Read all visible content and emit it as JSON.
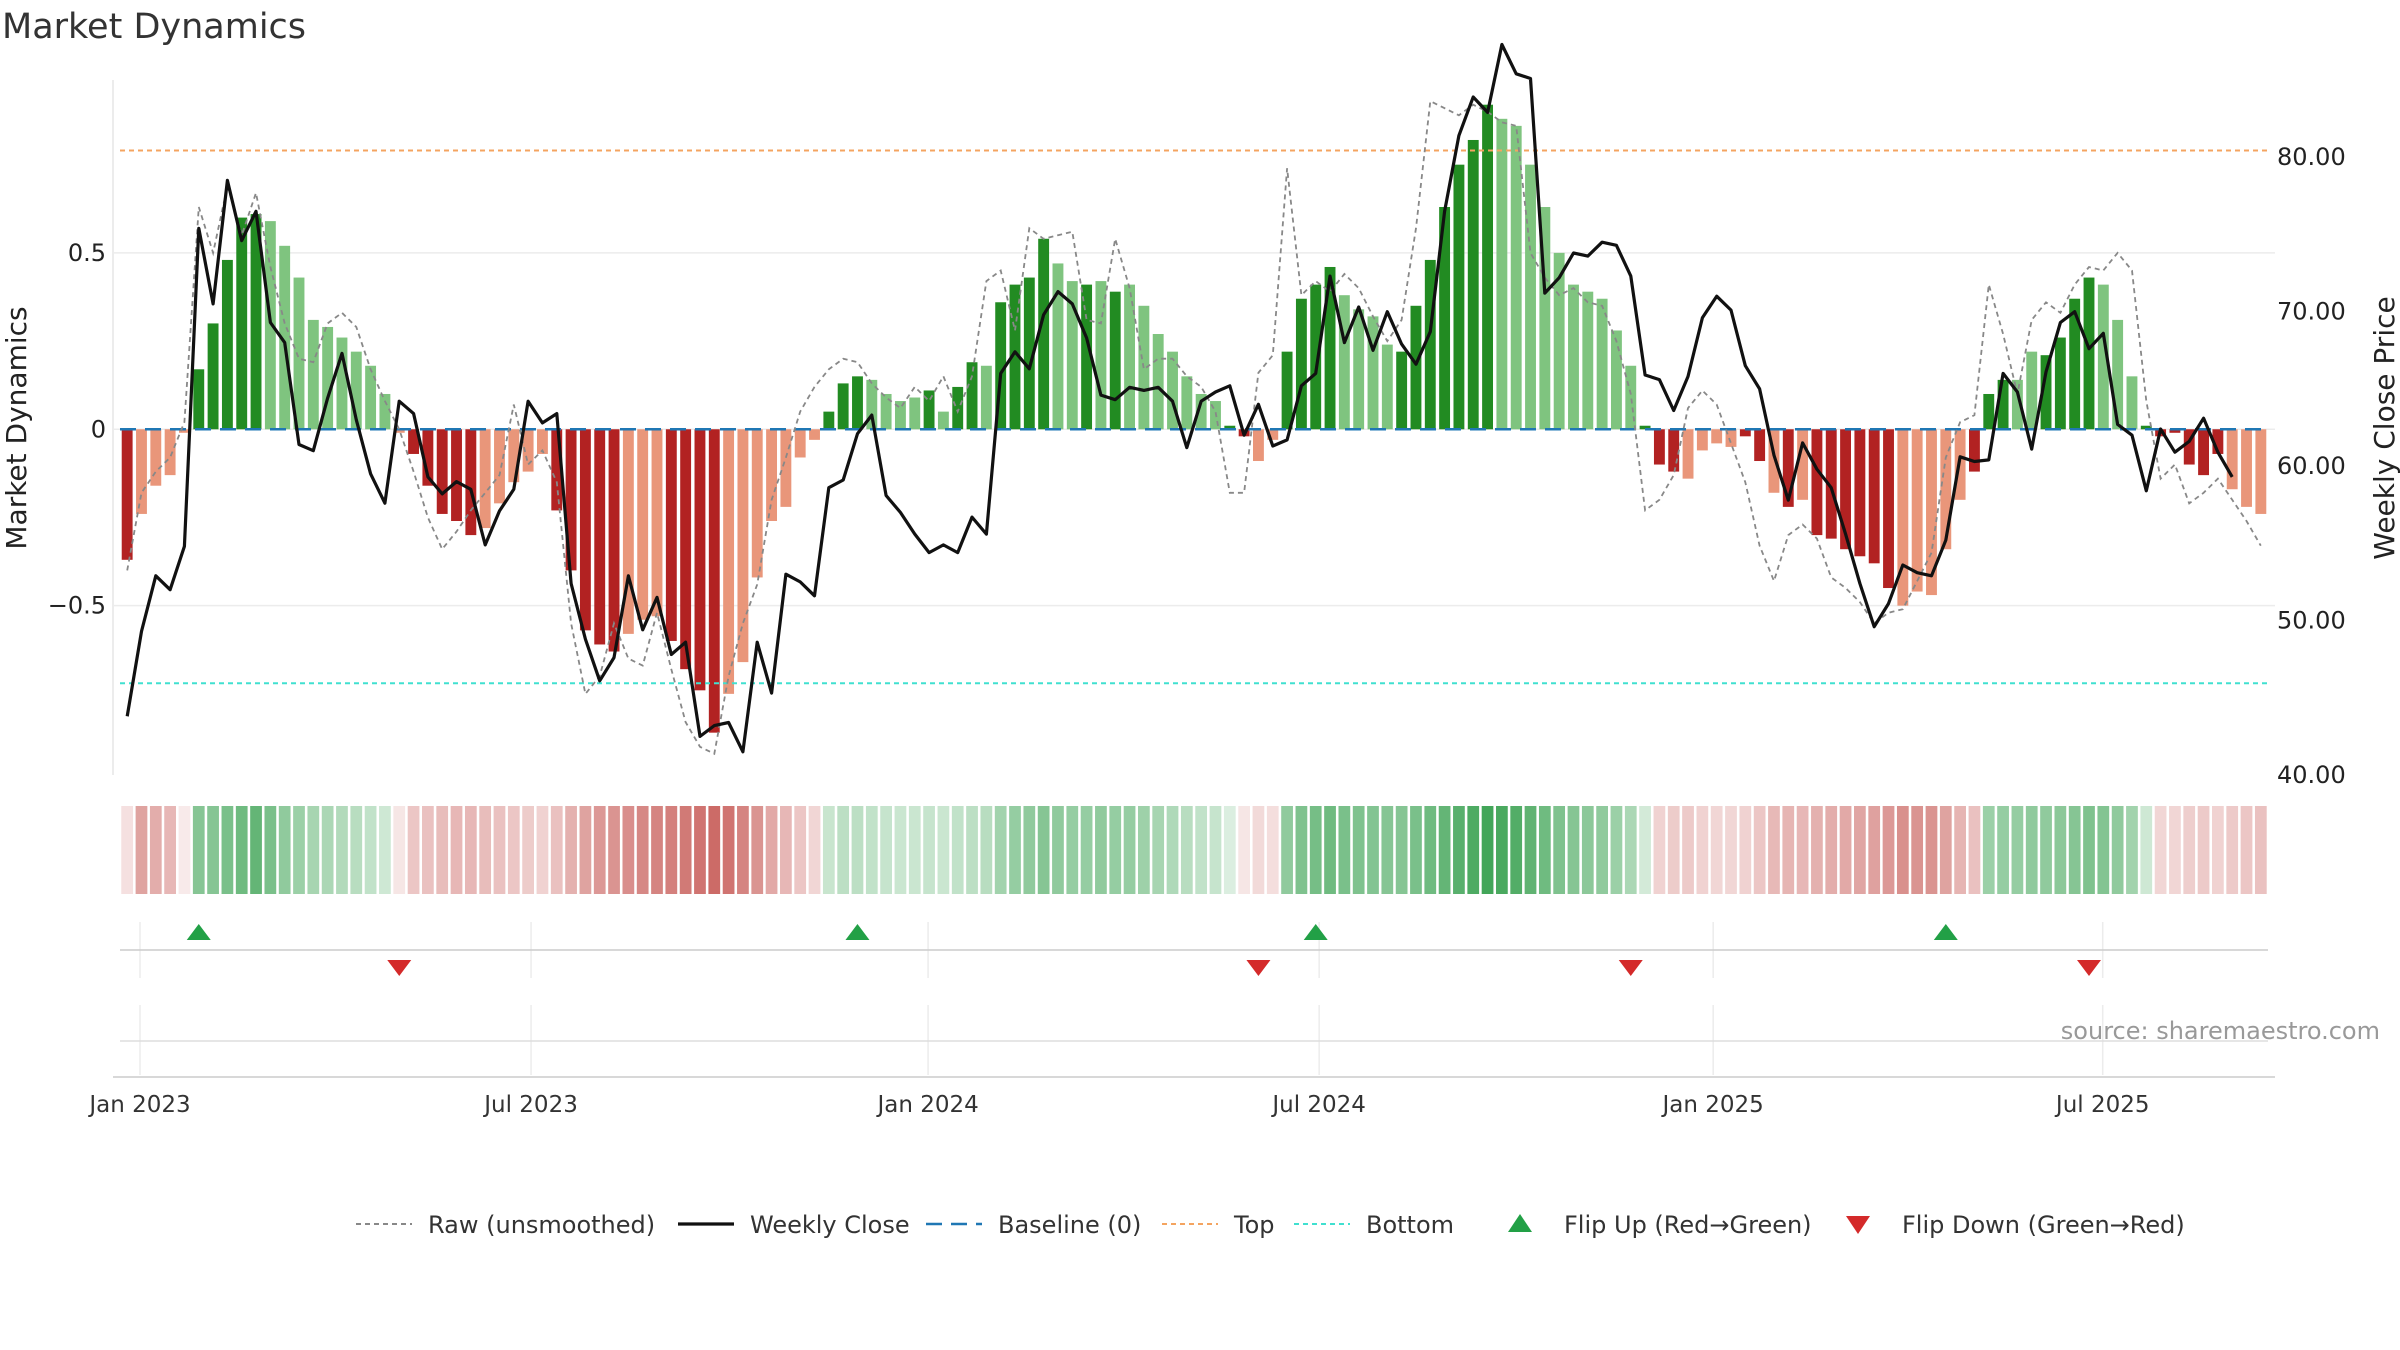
{
  "title": "Market Dynamics",
  "source": "source: sharemaestro.com",
  "colors": {
    "strong_green": "#228B22",
    "light_green": "#7fc47f",
    "strong_red": "#b22222",
    "light_red": "#e9967a",
    "close": "#111111",
    "raw": "#888888",
    "baseline": "#1f77b4",
    "top": "#f4a460",
    "bottom": "#40e0d0",
    "flip_up": "#22a046",
    "flip_down": "#d42a2a"
  },
  "chart_data": {
    "type": "bar",
    "title": "Market Dynamics",
    "ylabel_left": "Market Dynamics",
    "ylabel_right": "Weekly Close Price",
    "ylim_left": [
      -0.98,
      0.99
    ],
    "ylim_right": [
      40,
      85
    ],
    "left_ticks": [
      {
        "v": 0.5,
        "label": "0.5"
      },
      {
        "v": 0,
        "label": "0"
      },
      {
        "v": -0.5,
        "label": "−0.5"
      }
    ],
    "right_ticks": [
      {
        "v": 80,
        "label": "80.00"
      },
      {
        "v": 70,
        "label": "70.00"
      },
      {
        "v": 60,
        "label": "60.00"
      },
      {
        "v": 50,
        "label": "50.00"
      },
      {
        "v": 40,
        "label": "40.00"
      }
    ],
    "x_ticks": [
      {
        "label": "Jan 2023",
        "week": 0
      },
      {
        "label": "Jul 2023",
        "week": 26
      },
      {
        "label": "Jan 2024",
        "week": 52.4
      },
      {
        "label": "Jul 2024",
        "week": 78.4
      },
      {
        "label": "Jan 2025",
        "week": 104.6
      },
      {
        "label": "Jul 2025",
        "week": 130.5
      }
    ],
    "top_line": 0.79,
    "bottom_line": -0.72,
    "baseline": 0,
    "dynamics": [
      -0.37,
      -0.24,
      -0.16,
      -0.13,
      -0.01,
      0.17,
      0.3,
      0.48,
      0.6,
      0.61,
      0.59,
      0.52,
      0.43,
      0.31,
      0.29,
      0.26,
      0.22,
      0.18,
      0.1,
      -0.01,
      -0.07,
      -0.16,
      -0.24,
      -0.26,
      -0.3,
      -0.28,
      -0.21,
      -0.15,
      -0.12,
      -0.07,
      -0.23,
      -0.4,
      -0.57,
      -0.61,
      -0.63,
      -0.58,
      -0.54,
      -0.53,
      -0.6,
      -0.68,
      -0.74,
      -0.86,
      -0.75,
      -0.66,
      -0.42,
      -0.26,
      -0.22,
      -0.08,
      -0.03,
      0.05,
      0.13,
      0.15,
      0.14,
      0.1,
      0.08,
      0.09,
      0.11,
      0.05,
      0.12,
      0.19,
      0.18,
      0.36,
      0.41,
      0.43,
      0.54,
      0.47,
      0.42,
      0.41,
      0.42,
      0.39,
      0.41,
      0.35,
      0.27,
      0.22,
      0.15,
      0.1,
      0.08,
      0.01,
      -0.02,
      -0.09,
      -0.03,
      0.22,
      0.37,
      0.41,
      0.46,
      0.38,
      0.34,
      0.32,
      0.24,
      0.22,
      0.35,
      0.48,
      0.63,
      0.75,
      0.82,
      0.92,
      0.88,
      0.86,
      0.75,
      0.63,
      0.5,
      0.41,
      0.39,
      0.37,
      0.28,
      0.18,
      0.01,
      -0.1,
      -0.12,
      -0.14,
      -0.06,
      -0.04,
      -0.05,
      -0.02,
      -0.09,
      -0.18,
      -0.22,
      -0.2,
      -0.3,
      -0.31,
      -0.34,
      -0.36,
      -0.38,
      -0.45,
      -0.5,
      -0.46,
      -0.47,
      -0.34,
      -0.2,
      -0.12,
      0.1,
      0.14,
      0.14,
      0.22,
      0.21,
      0.26,
      0.37,
      0.43,
      0.41,
      0.31,
      0.15,
      0.01,
      -0.02,
      -0.01,
      -0.1,
      -0.13,
      -0.07,
      -0.17,
      -0.22,
      -0.24
    ],
    "bar_shades": [
      "dark",
      "light",
      "light",
      "light",
      "light",
      "dark",
      "dark",
      "dark",
      "dark",
      "dark",
      "light",
      "light",
      "light",
      "light",
      "light",
      "light",
      "light",
      "light",
      "light",
      "light",
      "dark",
      "dark",
      "dark",
      "dark",
      "dark",
      "light",
      "light",
      "light",
      "light",
      "light",
      "dark",
      "dark",
      "dark",
      "dark",
      "dark",
      "light",
      "light",
      "light",
      "dark",
      "dark",
      "dark",
      "dark",
      "light",
      "light",
      "light",
      "light",
      "light",
      "light",
      "light",
      "dark",
      "dark",
      "dark",
      "light",
      "light",
      "light",
      "light",
      "dark",
      "light",
      "dark",
      "dark",
      "light",
      "dark",
      "dark",
      "dark",
      "dark",
      "light",
      "light",
      "dark",
      "light",
      "dark",
      "light",
      "light",
      "light",
      "light",
      "light",
      "light",
      "light",
      "dark",
      "dark",
      "light",
      "light",
      "dark",
      "dark",
      "dark",
      "dark",
      "light",
      "light",
      "light",
      "light",
      "dark",
      "dark",
      "dark",
      "dark",
      "dark",
      "dark",
      "dark",
      "light",
      "light",
      "light",
      "light",
      "light",
      "light",
      "light",
      "light",
      "light",
      "light",
      "dark",
      "dark",
      "dark",
      "light",
      "light",
      "light",
      "light",
      "dark",
      "dark",
      "light",
      "dark",
      "light",
      "dark",
      "dark",
      "dark",
      "dark",
      "dark",
      "dark",
      "light",
      "light",
      "light",
      "light",
      "light",
      "dark",
      "dark",
      "dark",
      "light",
      "light",
      "dark",
      "dark",
      "dark",
      "dark",
      "light",
      "light",
      "light",
      "dark",
      "dark",
      "dark",
      "dark",
      "dark",
      "dark"
    ],
    "raw": [
      -0.4,
      -0.18,
      -0.12,
      -0.08,
      0.02,
      0.63,
      0.5,
      0.69,
      0.55,
      0.67,
      0.46,
      0.3,
      0.2,
      0.19,
      0.3,
      0.33,
      0.29,
      0.17,
      0.08,
      0.0,
      -0.12,
      -0.25,
      -0.34,
      -0.29,
      -0.23,
      -0.18,
      -0.13,
      0.07,
      -0.1,
      -0.06,
      -0.15,
      -0.55,
      -0.75,
      -0.7,
      -0.55,
      -0.65,
      -0.67,
      -0.52,
      -0.68,
      -0.83,
      -0.9,
      -0.92,
      -0.7,
      -0.55,
      -0.44,
      -0.2,
      -0.08,
      0.05,
      0.12,
      0.17,
      0.2,
      0.19,
      0.13,
      0.09,
      0.06,
      0.12,
      0.08,
      0.15,
      0.05,
      0.15,
      0.42,
      0.45,
      0.28,
      0.57,
      0.54,
      0.55,
      0.56,
      0.31,
      0.3,
      0.54,
      0.4,
      0.17,
      0.2,
      0.2,
      0.15,
      0.12,
      0.05,
      -0.18,
      -0.18,
      0.16,
      0.21,
      0.74,
      0.38,
      0.42,
      0.39,
      0.44,
      0.4,
      0.32,
      0.25,
      0.31,
      0.57,
      0.93,
      0.91,
      0.89,
      0.92,
      0.9,
      0.87,
      0.86,
      0.5,
      0.43,
      0.38,
      0.4,
      0.36,
      0.35,
      0.25,
      0.1,
      -0.23,
      -0.2,
      -0.13,
      0.06,
      0.11,
      0.07,
      -0.04,
      -0.15,
      -0.33,
      -0.43,
      -0.3,
      -0.27,
      -0.31,
      -0.42,
      -0.45,
      -0.49,
      -0.55,
      -0.52,
      -0.51,
      -0.43,
      -0.35,
      -0.08,
      0.02,
      0.04,
      0.41,
      0.27,
      0.1,
      0.31,
      0.36,
      0.33,
      0.41,
      0.46,
      0.45,
      0.5,
      0.45,
      0.08,
      -0.14,
      -0.1,
      -0.21,
      -0.18,
      -0.14,
      -0.2,
      -0.26,
      -0.33
    ],
    "close": [
      43.8,
      49.3,
      52.9,
      52,
      54.8,
      75.4,
      70.5,
      78.5,
      74.6,
      76.5,
      69.3,
      68,
      61.4,
      61,
      64.4,
      67.3,
      63,
      59.5,
      57.6,
      64.2,
      63.4,
      59.3,
      58.2,
      59,
      58.5,
      54.9,
      57.1,
      58.5,
      64.2,
      62.8,
      63.4,
      52.4,
      48.8,
      46.1,
      47.6,
      52.9,
      49.4,
      51.5,
      47.8,
      48.6,
      42.5,
      43.2,
      43.4,
      41.5,
      48.6,
      45.3,
      53,
      52.5,
      51.6,
      58.6,
      59.1,
      62.1,
      63.3,
      58.1,
      57,
      55.6,
      54.4,
      54.9,
      54.4,
      56.7,
      55.6,
      66,
      67.4,
      66.3,
      69.8,
      71.3,
      70.5,
      68.3,
      64.6,
      64.3,
      65.1,
      64.9,
      65.1,
      64.2,
      61.2,
      64.2,
      64.8,
      65.2,
      62,
      64,
      61.3,
      61.7,
      65.2,
      66,
      72.3,
      68,
      70.3,
      67.5,
      70,
      67.9,
      66.6,
      68.7,
      76.5,
      81.4,
      83.9,
      82.9,
      87.3,
      85.4,
      85.1,
      71.2,
      72.2,
      73.8,
      73.6,
      74.5,
      74.3,
      72.3,
      65.9,
      65.6,
      63.6,
      65.8,
      69.6,
      71,
      70.1,
      66.5,
      65,
      60.7,
      57.8,
      61.5,
      59.8,
      58.6,
      55.6,
      52.4,
      49.6,
      51.1,
      53.6,
      53.1,
      52.9,
      55.2,
      60.6,
      60.3,
      60.4,
      66,
      64.8,
      61.1,
      66.1,
      69.3,
      70,
      67.6,
      68.6,
      62.7,
      62,
      58.4,
      62.4,
      60.9,
      61.6,
      63.1,
      60.9,
      59.3
    ],
    "band_levels": [
      0.15,
      0.45,
      0.4,
      0.35,
      0.1,
      0.55,
      0.55,
      0.6,
      0.65,
      0.7,
      0.6,
      0.5,
      0.45,
      0.4,
      0.38,
      0.35,
      0.32,
      0.28,
      0.22,
      0.12,
      0.28,
      0.3,
      0.32,
      0.35,
      0.35,
      0.32,
      0.3,
      0.28,
      0.25,
      0.22,
      0.3,
      0.38,
      0.45,
      0.5,
      0.52,
      0.55,
      0.58,
      0.6,
      0.62,
      0.65,
      0.68,
      0.72,
      0.68,
      0.6,
      0.52,
      0.42,
      0.35,
      0.28,
      0.2,
      0.25,
      0.3,
      0.3,
      0.28,
      0.26,
      0.24,
      0.24,
      0.26,
      0.24,
      0.28,
      0.3,
      0.32,
      0.42,
      0.48,
      0.5,
      0.55,
      0.5,
      0.48,
      0.48,
      0.5,
      0.48,
      0.48,
      0.44,
      0.4,
      0.36,
      0.32,
      0.28,
      0.26,
      0.16,
      0.12,
      0.18,
      0.16,
      0.5,
      0.58,
      0.62,
      0.65,
      0.6,
      0.58,
      0.56,
      0.55,
      0.55,
      0.6,
      0.65,
      0.7,
      0.75,
      0.8,
      0.85,
      0.82,
      0.78,
      0.72,
      0.65,
      0.58,
      0.55,
      0.52,
      0.5,
      0.45,
      0.38,
      0.2,
      0.22,
      0.25,
      0.26,
      0.22,
      0.2,
      0.2,
      0.22,
      0.28,
      0.34,
      0.36,
      0.35,
      0.38,
      0.4,
      0.42,
      0.44,
      0.46,
      0.5,
      0.54,
      0.52,
      0.52,
      0.45,
      0.36,
      0.3,
      0.45,
      0.48,
      0.48,
      0.5,
      0.5,
      0.52,
      0.55,
      0.58,
      0.56,
      0.5,
      0.42,
      0.22,
      0.2,
      0.2,
      0.24,
      0.26,
      0.22,
      0.26,
      0.28,
      0.3
    ],
    "flips_up": [
      5,
      51,
      83,
      127
    ],
    "flips_down": [
      19,
      79,
      105,
      137
    ],
    "legend": [
      {
        "key": "raw",
        "label": "Raw (unsmoothed)"
      },
      {
        "key": "close",
        "label": "Weekly Close"
      },
      {
        "key": "baseline",
        "label": "Baseline (0)"
      },
      {
        "key": "top",
        "label": "Top"
      },
      {
        "key": "bottom",
        "label": "Bottom"
      },
      {
        "key": "flip_up",
        "label": "Flip Up (Red→Green)"
      },
      {
        "key": "flip_down",
        "label": "Flip Down (Green→Red)"
      }
    ]
  }
}
